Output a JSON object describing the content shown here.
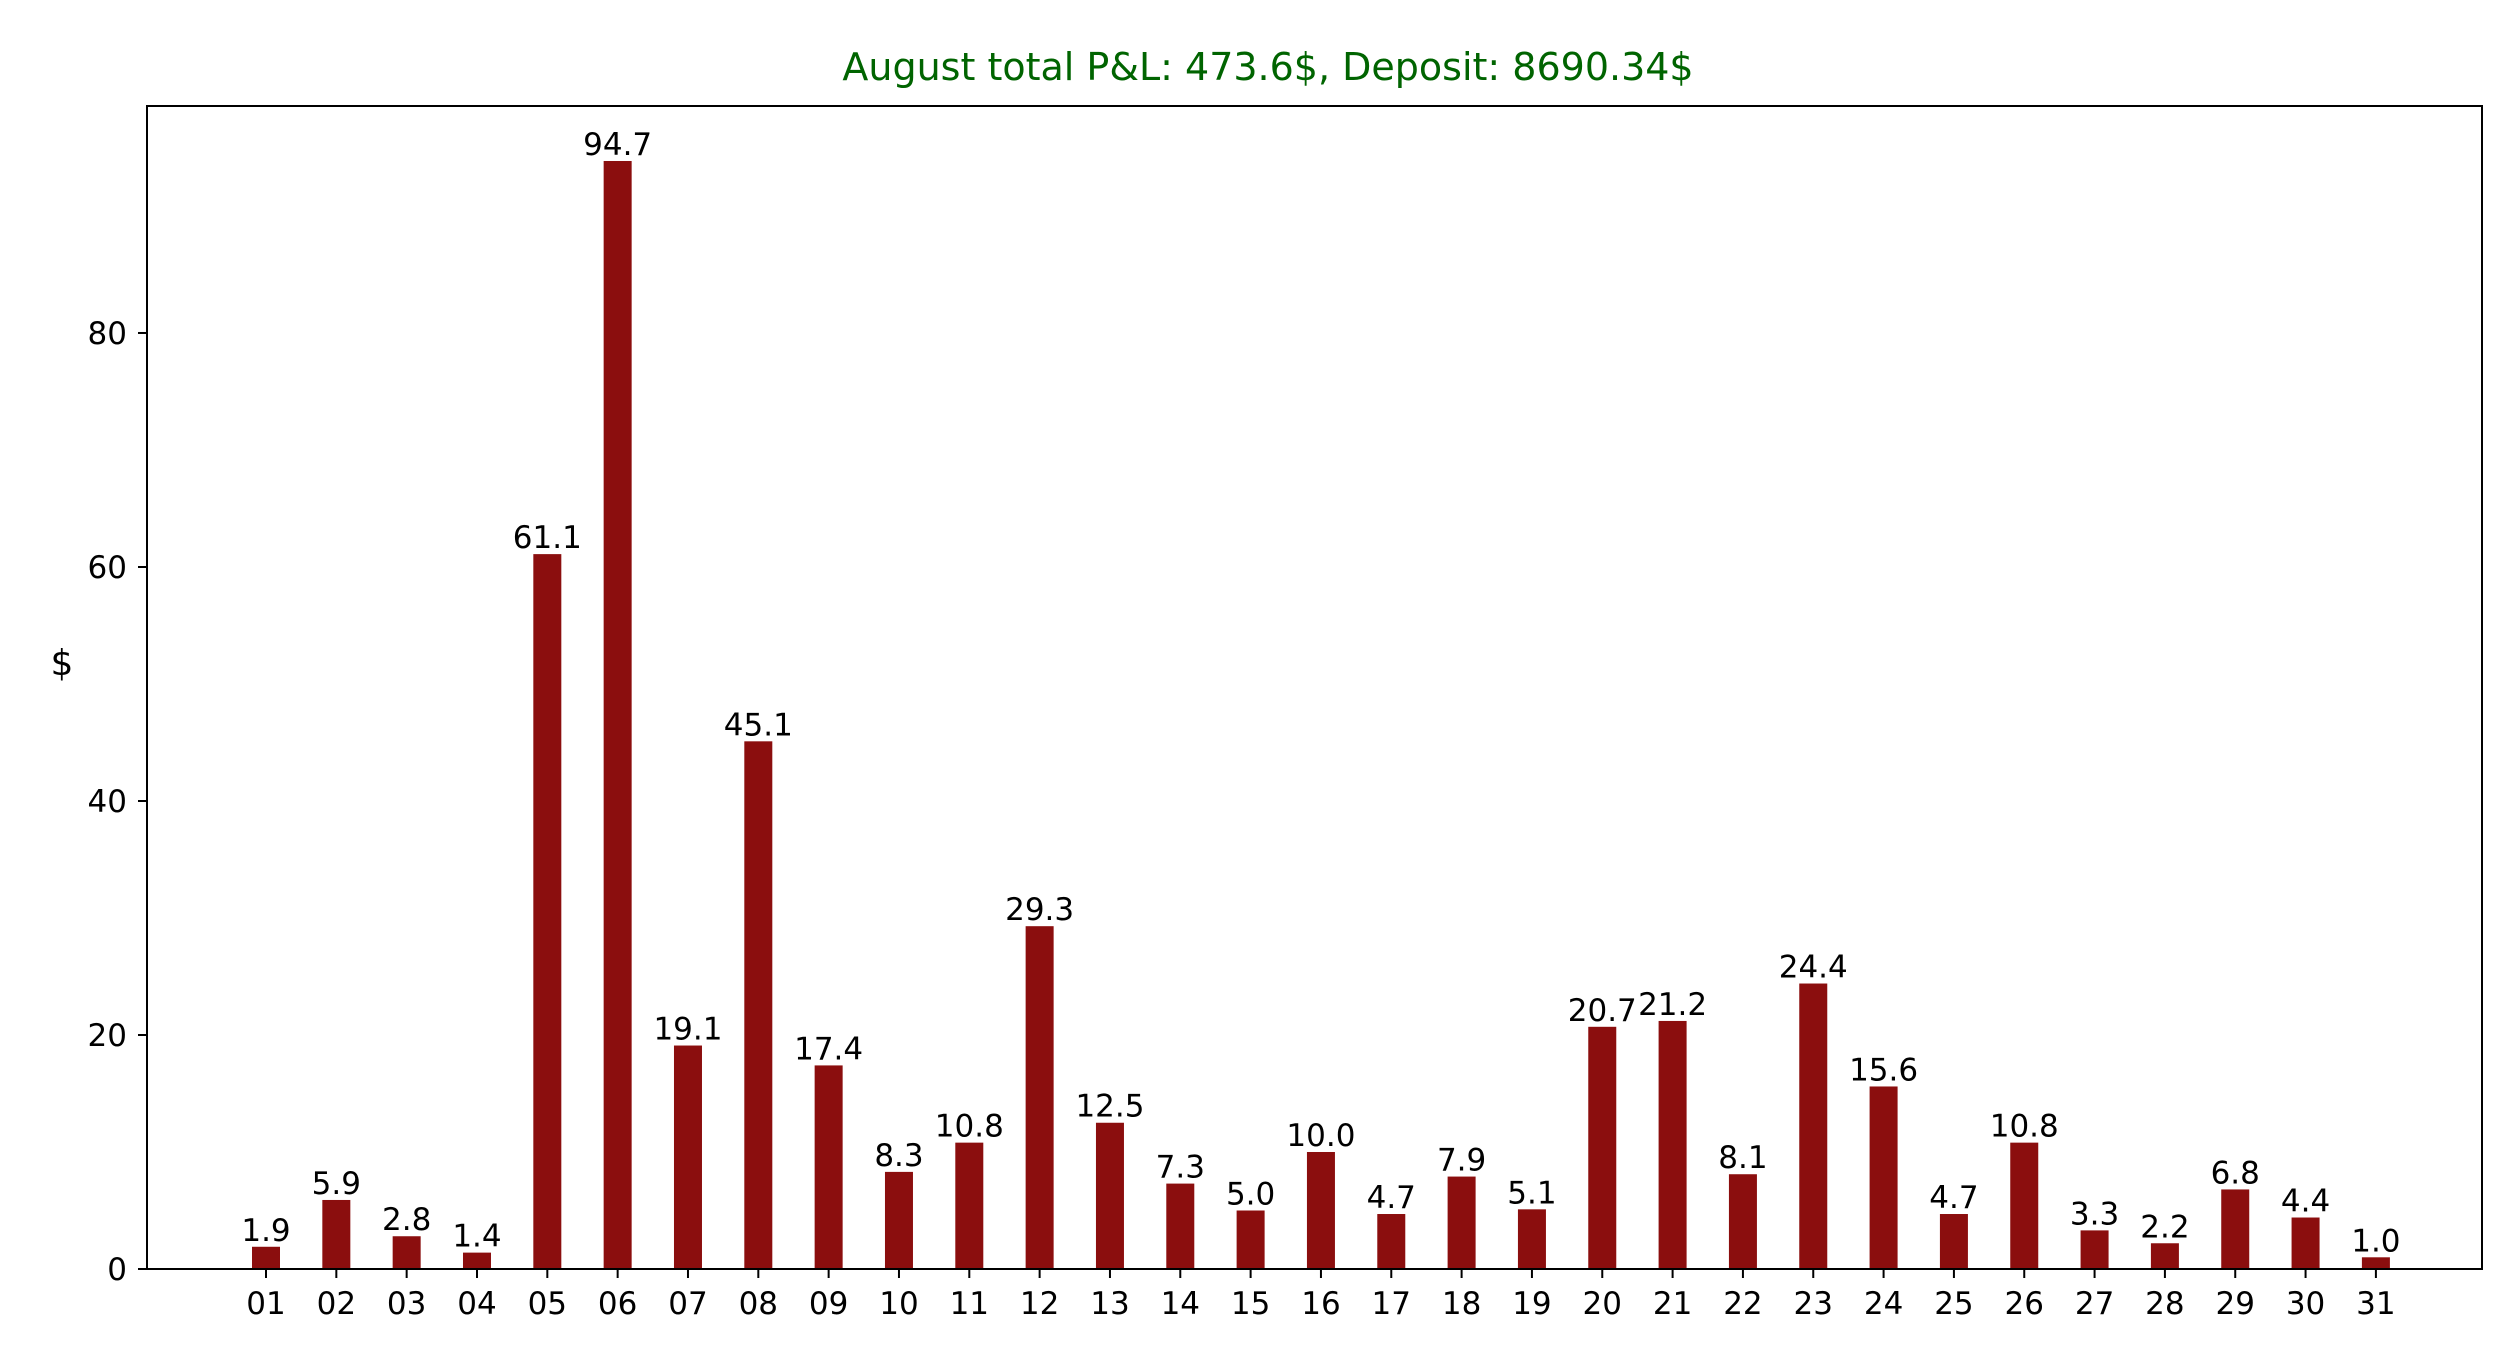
{
  "chart_data": {
    "type": "bar",
    "title": "August total P&L: 473.6$, Deposit: 8690.34$",
    "title_color": "#006400",
    "bar_color": "#8b0e0e",
    "xlabel": "",
    "ylabel": "$",
    "ylim": [
      0,
      99.4
    ],
    "yticks": [
      0,
      20,
      40,
      60,
      80
    ],
    "grid": false,
    "categories": [
      "01",
      "02",
      "03",
      "04",
      "05",
      "06",
      "07",
      "08",
      "09",
      "10",
      "11",
      "12",
      "13",
      "14",
      "15",
      "16",
      "17",
      "18",
      "19",
      "20",
      "21",
      "22",
      "23",
      "24",
      "25",
      "26",
      "27",
      "28",
      "29",
      "30",
      "31"
    ],
    "values": [
      1.9,
      5.9,
      2.8,
      1.4,
      61.1,
      94.7,
      19.1,
      45.1,
      17.4,
      8.3,
      10.8,
      29.3,
      12.5,
      7.3,
      5.0,
      10.0,
      4.7,
      7.9,
      5.1,
      20.7,
      21.2,
      8.1,
      24.4,
      15.6,
      4.7,
      10.8,
      3.3,
      2.2,
      6.8,
      4.4,
      1.0
    ],
    "labels": [
      "1.9",
      "5.9",
      "2.8",
      "1.4",
      "61.1",
      "94.7",
      "19.1",
      "45.1",
      "17.4",
      "8.3",
      "10.8",
      "29.3",
      "12.5",
      "7.3",
      "5.0",
      "10.0",
      "4.7",
      "7.9",
      "5.1",
      "20.7",
      "21.2",
      "8.1",
      "24.4",
      "15.6",
      "4.7",
      "10.8",
      "3.3",
      "2.2",
      "6.8",
      "4.4",
      "1.0"
    ]
  }
}
